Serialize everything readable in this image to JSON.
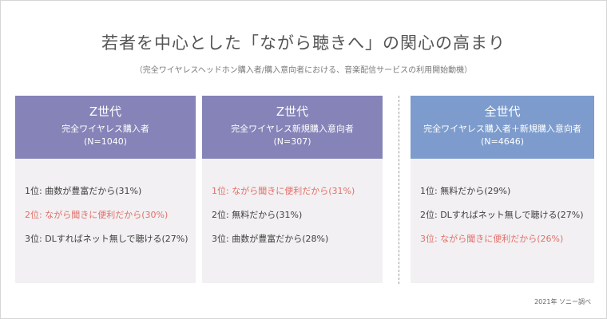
{
  "title": "若者を中心とした「ながら聴きへ」の関心の高まり",
  "subtitle": "（完全ワイヤレスヘッドホン購入者/購入意向者における、音楽配信サービスの利用開始動機）",
  "colors": {
    "purple_header": "#8583b7",
    "blue_header": "#7d9ccd",
    "card_bg": "#f2f0f2",
    "highlight": "#e0706a"
  },
  "cards": [
    {
      "generation": "Z世代",
      "group": "完全ワイヤレス購入者",
      "n": "(N=1040)",
      "ranks": [
        {
          "text": "1位: 曲数が豊富だから(31%)",
          "highlight": false
        },
        {
          "text": "2位: ながら聞きに便利だから(30%)",
          "highlight": true
        },
        {
          "text": "3位: DLすればネット無しで聴ける(27%)",
          "highlight": false
        }
      ]
    },
    {
      "generation": "Z世代",
      "group": "完全ワイヤレス新規購入意向者",
      "n": "(N=307)",
      "ranks": [
        {
          "text": "1位: ながら聞きに便利だから(31%)",
          "highlight": true
        },
        {
          "text": "2位: 無料だから(31%)",
          "highlight": false
        },
        {
          "text": "3位: 曲数が豊富だから(28%)",
          "highlight": false
        }
      ]
    },
    {
      "generation": "全世代",
      "group": "完全ワイヤレス購入者＋新規購入意向者",
      "n": "(N=4646)",
      "ranks": [
        {
          "text": "1位: 無料だから(29%)",
          "highlight": false
        },
        {
          "text": "2位: DLすればネット無しで聴ける(27%)",
          "highlight": false
        },
        {
          "text": "3位: ながら聞きに便利だから(26%)",
          "highlight": true
        }
      ]
    }
  ],
  "source": "2021年 ソニー調べ"
}
